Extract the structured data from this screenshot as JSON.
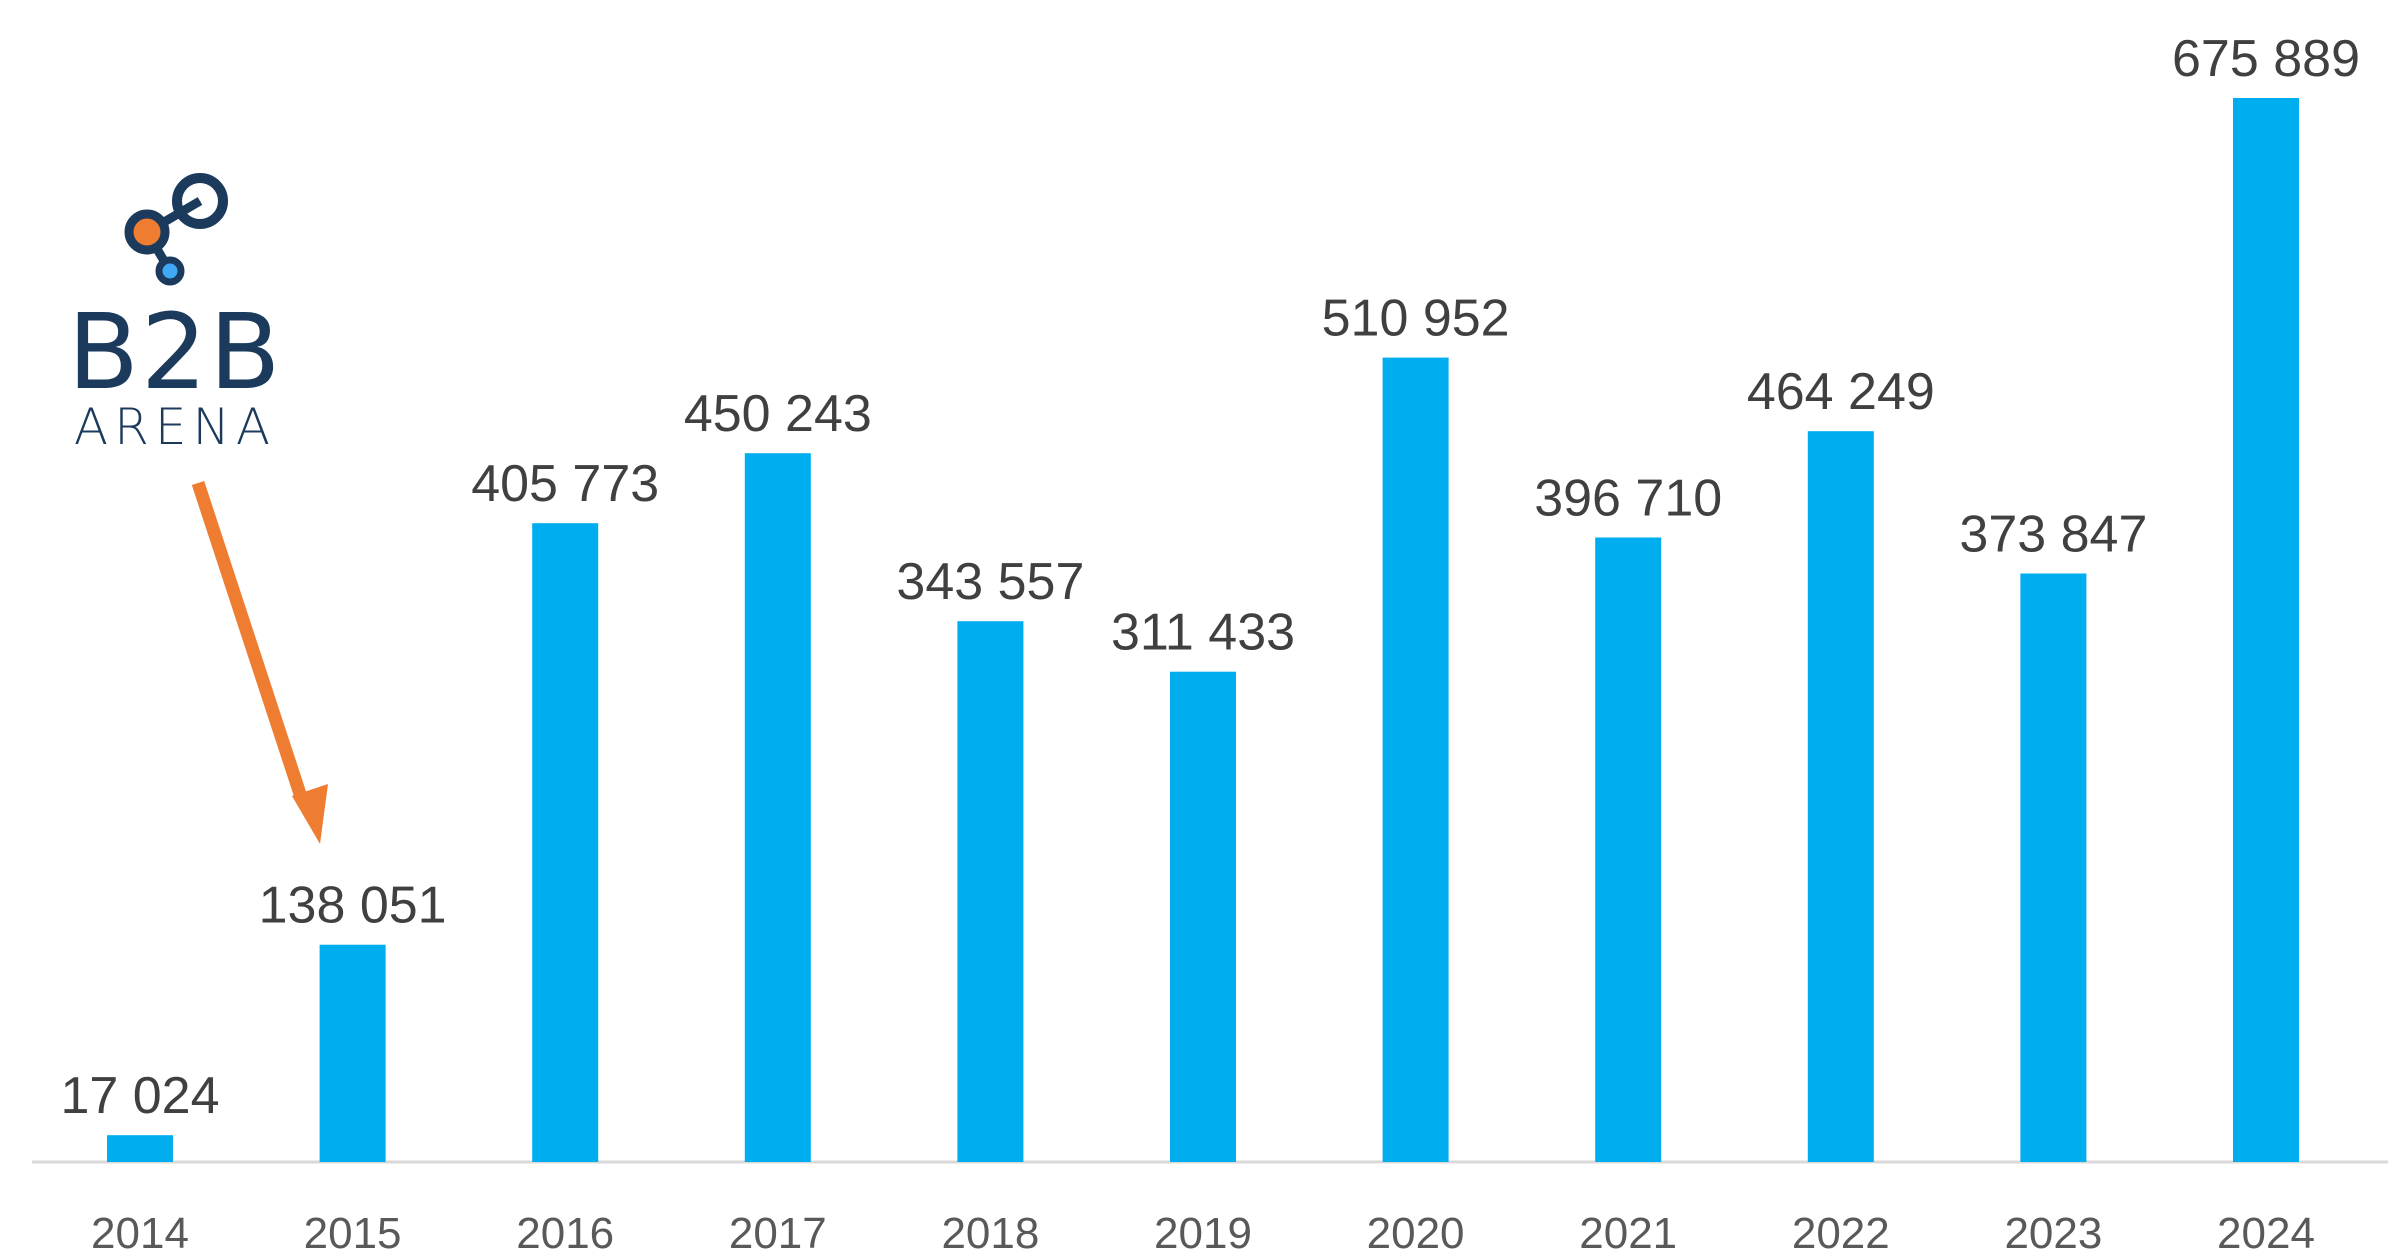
{
  "chart_data": {
    "type": "bar",
    "title": "",
    "xlabel": "",
    "ylabel": "",
    "categories": [
      "2014",
      "2015",
      "2016",
      "2017",
      "2018",
      "2019",
      "2020",
      "2021",
      "2022",
      "2023",
      "2024"
    ],
    "values": [
      17024,
      138051,
      405773,
      450243,
      343557,
      311433,
      510952,
      396710,
      464249,
      373847,
      675889
    ],
    "value_labels": [
      "17 024",
      "138 051",
      "405 773",
      "450 243",
      "343 557",
      "311 433",
      "510 952",
      "396 710",
      "464 249",
      "373 847",
      "675 889"
    ],
    "ylim": [
      0,
      675889
    ],
    "grid": false,
    "legend": "none",
    "bar_color": "#00adee",
    "annotation": "arrow pointing to 2015"
  },
  "logo": {
    "text_main": "B2B",
    "text_sub": "ARENA",
    "color_primary": "#1b3a5c",
    "color_accent": "#ee7d31",
    "color_secondary": "#3fa9f5"
  },
  "colors": {
    "bar": "#00adee",
    "axis": "#d9d9d9",
    "label": "#404040",
    "tick": "#595959",
    "arrow": "#ee7d31"
  }
}
